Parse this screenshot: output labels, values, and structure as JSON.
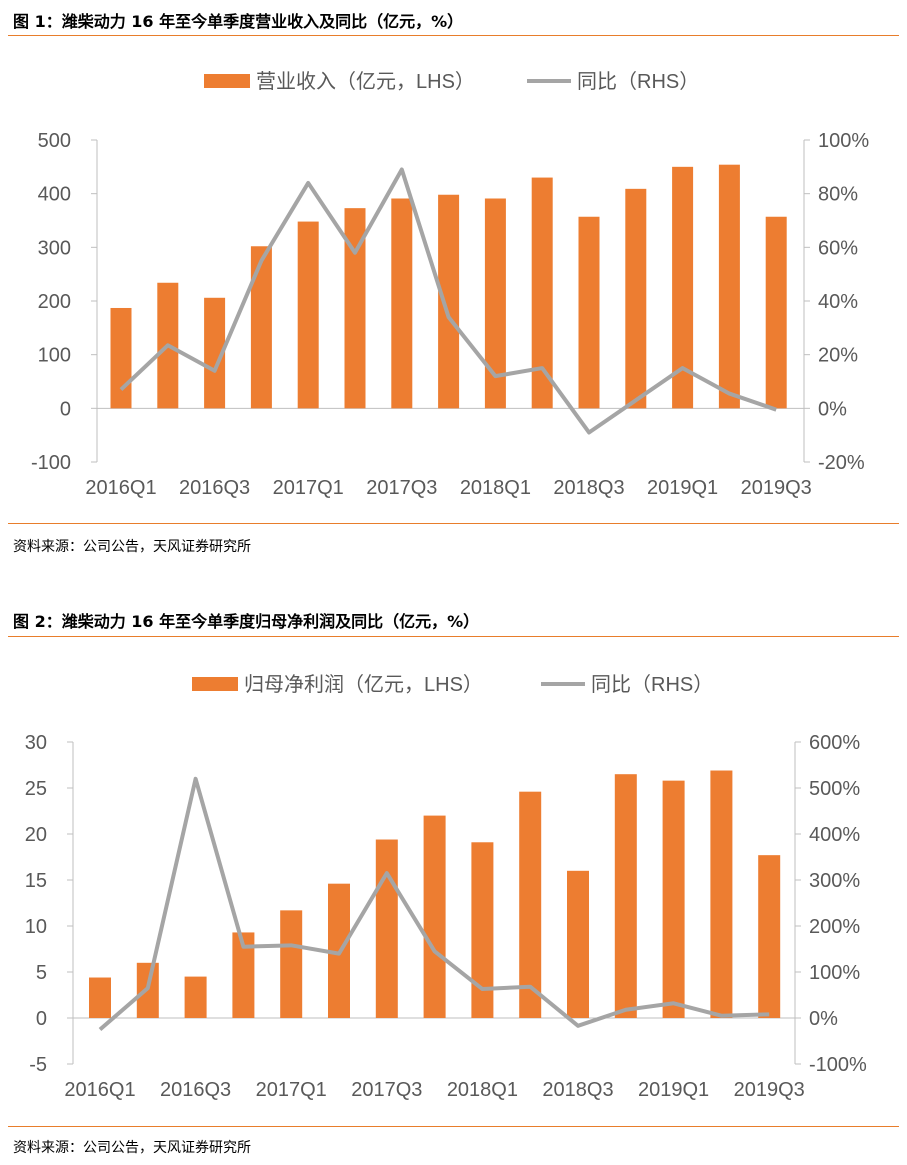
{
  "figures": [
    {
      "title": "图 1：潍柴动力 16 年至今单季度营业收入及同比（亿元，%）",
      "source": "资料来源：公司公告，天风证券研究所",
      "chart_data": {
        "type": "bar+line",
        "categories": [
          "2016Q1",
          "2016Q2",
          "2016Q3",
          "2016Q4",
          "2017Q1",
          "2017Q2",
          "2017Q3",
          "2017Q4",
          "2018Q1",
          "2018Q2",
          "2018Q3",
          "2018Q4",
          "2019Q1",
          "2019Q2",
          "2019Q3"
        ],
        "xtick_labels": [
          "2016Q1",
          "2016Q3",
          "2017Q1",
          "2017Q3",
          "2018Q1",
          "2018Q3",
          "2019Q1",
          "2019Q3"
        ],
        "series": [
          {
            "name": "营业收入（亿元，LHS）",
            "type": "bar",
            "axis": "left",
            "values": [
              187,
              234,
              206,
              302,
              348,
              373,
              391,
              398,
              391,
              430,
              357,
              409,
              450,
              454,
              357
            ]
          },
          {
            "name": "同比（RHS）",
            "type": "line",
            "axis": "right",
            "values": [
              7,
              23.5,
              14,
              55,
              84,
              58,
              89,
              34,
              12,
              15,
              -9,
              3,
              15,
              5.5,
              -0.5
            ]
          }
        ],
        "ylim_left": [
          -100,
          500
        ],
        "yticks_left": [
          -100,
          0,
          100,
          200,
          300,
          400,
          500
        ],
        "ylim_right": [
          -20,
          100
        ],
        "yticks_right": [
          "-20%",
          "0%",
          "20%",
          "40%",
          "60%",
          "80%",
          "100%"
        ],
        "bar_color": "#ed7d31",
        "line_color": "#a5a5a5",
        "legend_position": "top-center"
      }
    },
    {
      "title": "图 2：潍柴动力 16 年至今单季度归母净利润及同比（亿元，%）",
      "source": "资料来源：公司公告，天风证券研究所",
      "chart_data": {
        "type": "bar+line",
        "categories": [
          "2016Q1",
          "2016Q2",
          "2016Q3",
          "2016Q4",
          "2017Q1",
          "2017Q2",
          "2017Q3",
          "2017Q4",
          "2018Q1",
          "2018Q2",
          "2018Q3",
          "2018Q4",
          "2019Q1",
          "2019Q2",
          "2019Q3"
        ],
        "xtick_labels": [
          "2016Q1",
          "2016Q3",
          "2017Q1",
          "2017Q3",
          "2018Q1",
          "2018Q3",
          "2019Q1",
          "2019Q3"
        ],
        "series": [
          {
            "name": "归母净利润（亿元，LHS）",
            "type": "bar",
            "axis": "left",
            "values": [
              4.4,
              6.0,
              4.5,
              9.3,
              11.7,
              14.6,
              19.4,
              22.0,
              19.1,
              24.6,
              16.0,
              26.5,
              25.8,
              26.9,
              17.7
            ]
          },
          {
            "name": "同比（RHS）",
            "type": "line",
            "axis": "right",
            "values": [
              -25,
              65,
              520,
              155,
              158,
              140,
              315,
              145,
              63,
              68,
              -17,
              18,
              32,
              5,
              8
            ]
          }
        ],
        "ylim_left": [
          -5,
          30
        ],
        "yticks_left": [
          -5,
          0,
          5,
          10,
          15,
          20,
          25,
          30
        ],
        "ylim_right": [
          -100,
          600
        ],
        "yticks_right": [
          "-100%",
          "0%",
          "100%",
          "200%",
          "300%",
          "400%",
          "500%",
          "600%"
        ],
        "bar_color": "#ed7d31",
        "line_color": "#a5a5a5",
        "legend_position": "top-center"
      }
    }
  ]
}
